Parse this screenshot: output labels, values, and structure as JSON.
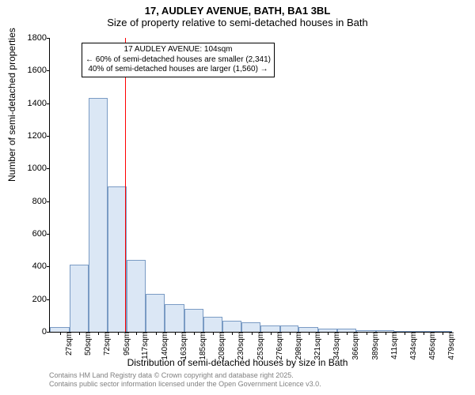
{
  "title": "17, AUDLEY AVENUE, BATH, BA1 3BL",
  "subtitle": "Size of property relative to semi-detached houses in Bath",
  "ylabel": "Number of semi-detached properties",
  "xlabel": "Distribution of semi-detached houses by size in Bath",
  "footer_line1": "Contains HM Land Registry data © Crown copyright and database right 2025.",
  "footer_line2": "Contains public sector information licensed under the Open Government Licence v3.0.",
  "annotation": {
    "line1": "17 AUDLEY AVENUE: 104sqm",
    "line2": "← 60% of semi-detached houses are smaller (2,341)",
    "line3": "40% of semi-detached houses are larger (1,560) →"
  },
  "chart": {
    "type": "histogram",
    "ylim": [
      0,
      1800
    ],
    "ytick_step": 200,
    "x_min": 15,
    "x_max": 490,
    "x_ticks": [
      27,
      50,
      72,
      95,
      117,
      140,
      163,
      185,
      208,
      230,
      253,
      276,
      298,
      321,
      343,
      366,
      389,
      411,
      434,
      456,
      479
    ],
    "x_tick_suffix": "sqm",
    "bar_fill": "#dbe7f5",
    "bar_stroke": "#7a9bc4",
    "marker_color": "#ff0000",
    "marker_x": 104,
    "background_color": "#ffffff",
    "title_fontsize": 13,
    "label_fontsize": 12,
    "tick_fontsize": 10,
    "bars": [
      {
        "x0": 15,
        "x1": 38,
        "y": 30
      },
      {
        "x0": 38,
        "x1": 61,
        "y": 410
      },
      {
        "x0": 61,
        "x1": 83,
        "y": 1430
      },
      {
        "x0": 83,
        "x1": 106,
        "y": 890
      },
      {
        "x0": 106,
        "x1": 128,
        "y": 440
      },
      {
        "x0": 128,
        "x1": 151,
        "y": 230
      },
      {
        "x0": 151,
        "x1": 174,
        "y": 170
      },
      {
        "x0": 174,
        "x1": 196,
        "y": 140
      },
      {
        "x0": 196,
        "x1": 219,
        "y": 90
      },
      {
        "x0": 219,
        "x1": 241,
        "y": 70
      },
      {
        "x0": 241,
        "x1": 264,
        "y": 60
      },
      {
        "x0": 264,
        "x1": 287,
        "y": 40
      },
      {
        "x0": 287,
        "x1": 309,
        "y": 40
      },
      {
        "x0": 309,
        "x1": 332,
        "y": 30
      },
      {
        "x0": 332,
        "x1": 354,
        "y": 20
      },
      {
        "x0": 354,
        "x1": 377,
        "y": 20
      },
      {
        "x0": 377,
        "x1": 400,
        "y": 10
      },
      {
        "x0": 400,
        "x1": 422,
        "y": 10
      },
      {
        "x0": 422,
        "x1": 445,
        "y": 5
      },
      {
        "x0": 445,
        "x1": 467,
        "y": 5
      },
      {
        "x0": 467,
        "x1": 490,
        "y": 5
      }
    ]
  }
}
